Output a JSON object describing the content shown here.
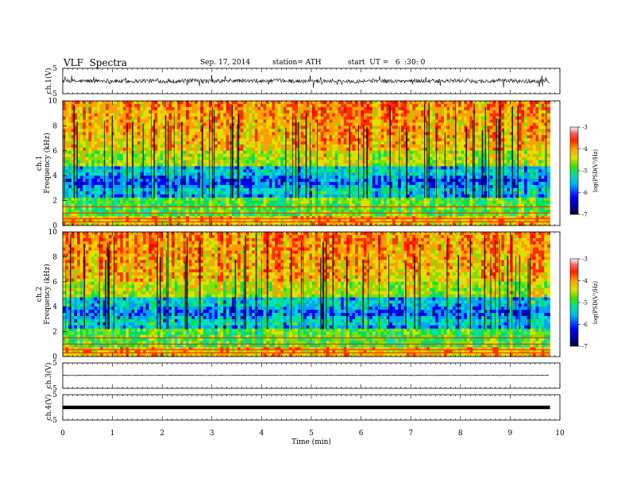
{
  "header": {
    "title": "VLF  Spectra",
    "date": "Sep. 17, 2014",
    "station": "station= ATH",
    "start": "start  UT =   6  :30: 0"
  },
  "chart_data": [
    {
      "type": "line",
      "name": "ch1-waveform",
      "ylabel": "ch.1(V)",
      "ylim": [
        -5,
        5
      ],
      "yticks": [
        "5",
        "-5"
      ],
      "xlim": [
        0,
        10
      ]
    },
    {
      "type": "heatmap",
      "name": "ch1-spectrogram",
      "ylabel": "ch.1\nFrequency  (kHz)",
      "ylabel_lines": [
        "ch.1",
        "Frequency  (kHz)"
      ],
      "ylim": [
        0,
        10
      ],
      "yticks": [
        0,
        2,
        4,
        6,
        8,
        10
      ],
      "xlim": [
        0,
        10
      ],
      "data_end_min": 9.8,
      "colorbar": {
        "label": "log(PSD(V²/Hz)",
        "range": [
          -7,
          -3
        ],
        "ticks": [
          "-3",
          "-4",
          "-5",
          "-6",
          "-7"
        ]
      }
    },
    {
      "type": "heatmap",
      "name": "ch2-spectrogram",
      "ylabel": "ch.2\nFrequency  (kHz)",
      "ylabel_lines": [
        "ch.2",
        "Frequency  (kHz)"
      ],
      "ylim": [
        0,
        10
      ],
      "yticks": [
        0,
        2,
        4,
        6,
        8,
        10
      ],
      "xlim": [
        0,
        10
      ],
      "data_end_min": 9.8,
      "colorbar": {
        "label": "log(PSD(V²/Hz)",
        "range": [
          -7,
          -3
        ],
        "ticks": [
          "-3",
          "-4",
          "-5",
          "-6",
          "-7"
        ]
      }
    },
    {
      "type": "line",
      "name": "ch3-waveform",
      "ylabel": "ch.3(V)",
      "ylim": [
        -5,
        5
      ],
      "yticks": [
        "5",
        "-5"
      ],
      "xlim": [
        0,
        10
      ]
    },
    {
      "type": "line",
      "name": "ch4-waveform",
      "ylabel": "ch.4(V)",
      "ylim": [
        -5,
        5
      ],
      "yticks": [
        "5",
        "-5"
      ],
      "xlim": [
        0,
        10
      ],
      "xlabel": "Time  (min)",
      "xticks": [
        "0",
        "1",
        "2",
        "3",
        "4",
        "5",
        "6",
        "7",
        "8",
        "9",
        "10"
      ]
    }
  ],
  "colors": {
    "colormap": [
      "#000080",
      "#0000ff",
      "#00a0ff",
      "#00e0c0",
      "#00e060",
      "#80e000",
      "#e0e000",
      "#ffa000",
      "#ff3000",
      "#ff0000",
      "#ffffff"
    ]
  }
}
